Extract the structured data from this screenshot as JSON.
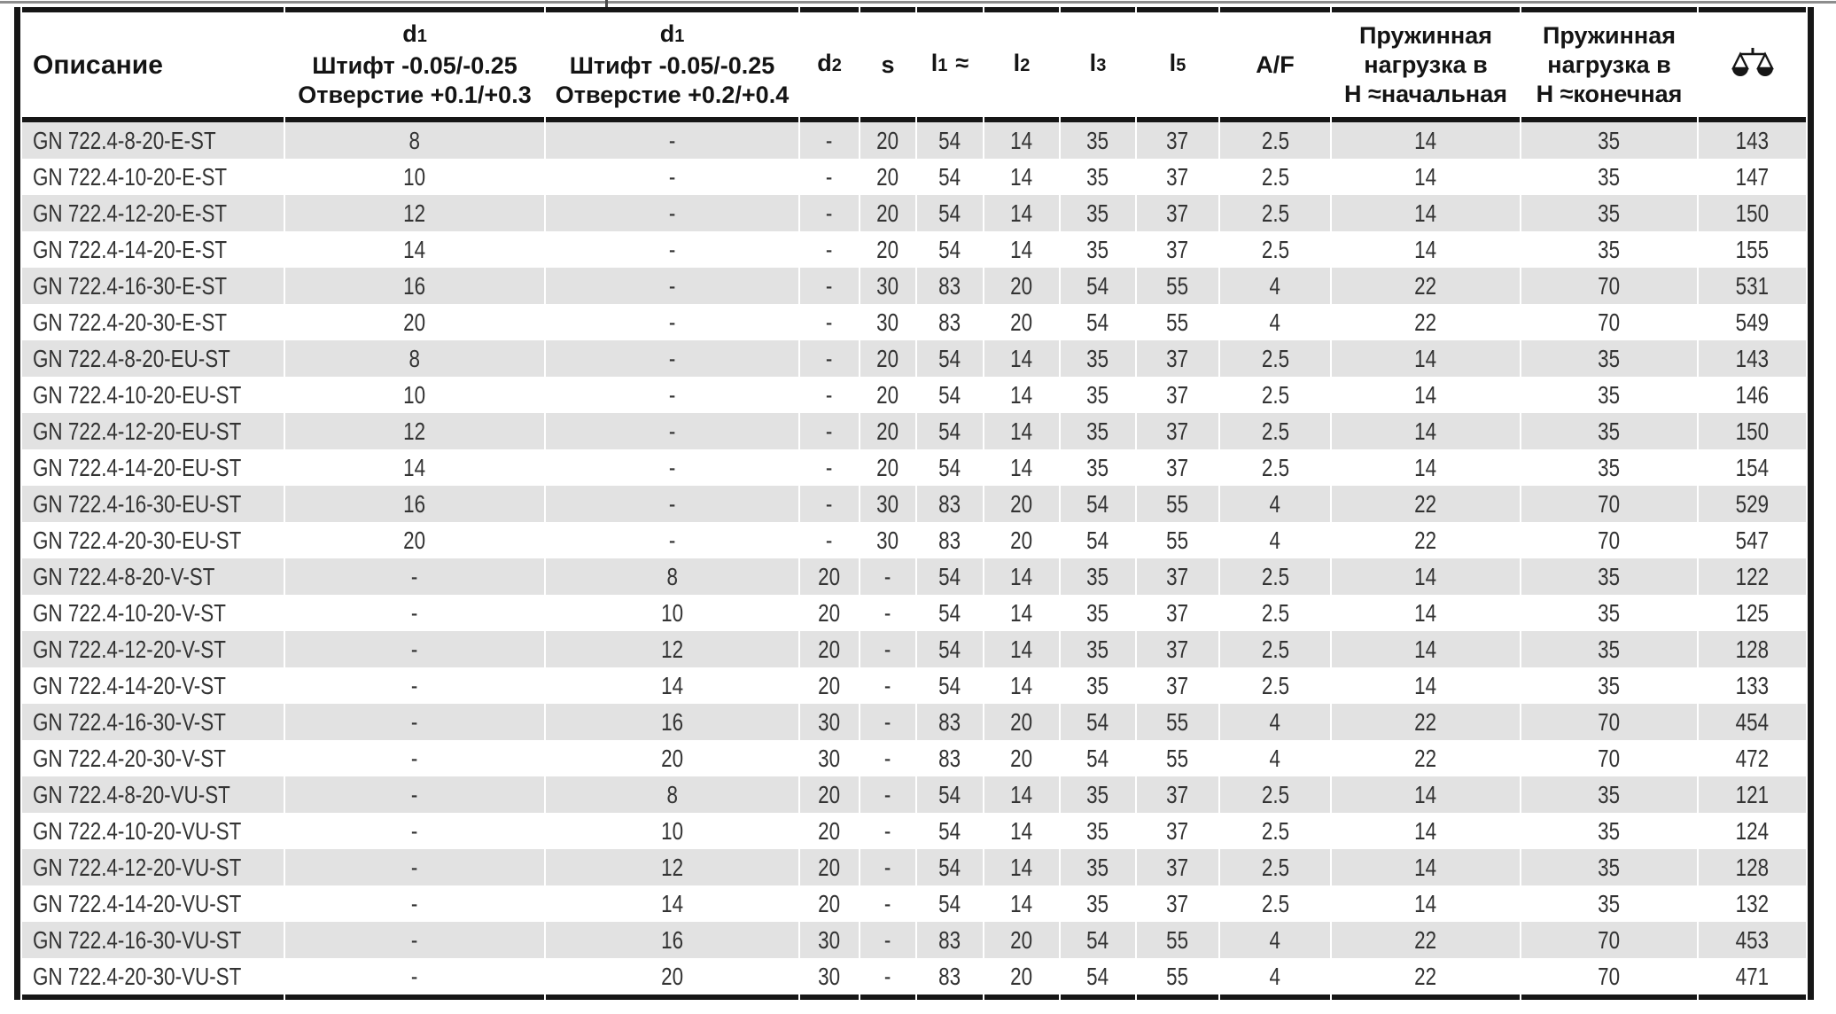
{
  "colors": {
    "stripe": "#e2e2e2",
    "border": "#161616",
    "header_text": "#141414",
    "body_text": "#333333",
    "top_rule": "#8d8d8d"
  },
  "table": {
    "column_ids": [
      "description",
      "d1_hole_a",
      "d1_hole_b",
      "d2",
      "s",
      "l1",
      "l2",
      "l3",
      "l5",
      "af",
      "spring_load_initial",
      "spring_load_final",
      "weight"
    ],
    "header": {
      "description": "Описание",
      "d1_hole_a": {
        "main": "d",
        "sub": "1",
        "line2": "Штифт -0.05/-0.25",
        "line3": "Отверстие +0.1/+0.3"
      },
      "d1_hole_b": {
        "main": "d",
        "sub": "1",
        "line2": "Штифт -0.05/-0.25",
        "line3": "Отверстие +0.2/+0.4"
      },
      "d2": {
        "main": "d",
        "sub": "2"
      },
      "s": "s",
      "l1": {
        "main": "l",
        "sub": "1",
        "approx": "≈"
      },
      "l2": {
        "main": "l",
        "sub": "2"
      },
      "l3": {
        "main": "l",
        "sub": "3"
      },
      "l5": {
        "main": "l",
        "sub": "5"
      },
      "af": "A/F",
      "spring_load_initial_lines": [
        "Пружинная",
        "нагрузка в",
        "H ≈начальная"
      ],
      "spring_load_final_lines": [
        "Пружинная",
        "нагрузка в",
        "H ≈конечная"
      ],
      "weight_icon": "scale-icon"
    },
    "rows": [
      [
        "GN 722.4-8-20-E-ST",
        "8",
        "-",
        "-",
        "20",
        "54",
        "14",
        "35",
        "37",
        "2.5",
        "14",
        "35",
        "143"
      ],
      [
        "GN 722.4-10-20-E-ST",
        "10",
        "-",
        "-",
        "20",
        "54",
        "14",
        "35",
        "37",
        "2.5",
        "14",
        "35",
        "147"
      ],
      [
        "GN 722.4-12-20-E-ST",
        "12",
        "-",
        "-",
        "20",
        "54",
        "14",
        "35",
        "37",
        "2.5",
        "14",
        "35",
        "150"
      ],
      [
        "GN 722.4-14-20-E-ST",
        "14",
        "-",
        "-",
        "20",
        "54",
        "14",
        "35",
        "37",
        "2.5",
        "14",
        "35",
        "155"
      ],
      [
        "GN 722.4-16-30-E-ST",
        "16",
        "-",
        "-",
        "30",
        "83",
        "20",
        "54",
        "55",
        "4",
        "22",
        "70",
        "531"
      ],
      [
        "GN 722.4-20-30-E-ST",
        "20",
        "-",
        "-",
        "30",
        "83",
        "20",
        "54",
        "55",
        "4",
        "22",
        "70",
        "549"
      ],
      [
        "GN 722.4-8-20-EU-ST",
        "8",
        "-",
        "-",
        "20",
        "54",
        "14",
        "35",
        "37",
        "2.5",
        "14",
        "35",
        "143"
      ],
      [
        "GN 722.4-10-20-EU-ST",
        "10",
        "-",
        "-",
        "20",
        "54",
        "14",
        "35",
        "37",
        "2.5",
        "14",
        "35",
        "146"
      ],
      [
        "GN 722.4-12-20-EU-ST",
        "12",
        "-",
        "-",
        "20",
        "54",
        "14",
        "35",
        "37",
        "2.5",
        "14",
        "35",
        "150"
      ],
      [
        "GN 722.4-14-20-EU-ST",
        "14",
        "-",
        "-",
        "20",
        "54",
        "14",
        "35",
        "37",
        "2.5",
        "14",
        "35",
        "154"
      ],
      [
        "GN 722.4-16-30-EU-ST",
        "16",
        "-",
        "-",
        "30",
        "83",
        "20",
        "54",
        "55",
        "4",
        "22",
        "70",
        "529"
      ],
      [
        "GN 722.4-20-30-EU-ST",
        "20",
        "-",
        "-",
        "30",
        "83",
        "20",
        "54",
        "55",
        "4",
        "22",
        "70",
        "547"
      ],
      [
        "GN 722.4-8-20-V-ST",
        "-",
        "8",
        "20",
        "-",
        "54",
        "14",
        "35",
        "37",
        "2.5",
        "14",
        "35",
        "122"
      ],
      [
        "GN 722.4-10-20-V-ST",
        "-",
        "10",
        "20",
        "-",
        "54",
        "14",
        "35",
        "37",
        "2.5",
        "14",
        "35",
        "125"
      ],
      [
        "GN 722.4-12-20-V-ST",
        "-",
        "12",
        "20",
        "-",
        "54",
        "14",
        "35",
        "37",
        "2.5",
        "14",
        "35",
        "128"
      ],
      [
        "GN 722.4-14-20-V-ST",
        "-",
        "14",
        "20",
        "-",
        "54",
        "14",
        "35",
        "37",
        "2.5",
        "14",
        "35",
        "133"
      ],
      [
        "GN 722.4-16-30-V-ST",
        "-",
        "16",
        "30",
        "-",
        "83",
        "20",
        "54",
        "55",
        "4",
        "22",
        "70",
        "454"
      ],
      [
        "GN 722.4-20-30-V-ST",
        "-",
        "20",
        "30",
        "-",
        "83",
        "20",
        "54",
        "55",
        "4",
        "22",
        "70",
        "472"
      ],
      [
        "GN 722.4-8-20-VU-ST",
        "-",
        "8",
        "20",
        "-",
        "54",
        "14",
        "35",
        "37",
        "2.5",
        "14",
        "35",
        "121"
      ],
      [
        "GN 722.4-10-20-VU-ST",
        "-",
        "10",
        "20",
        "-",
        "54",
        "14",
        "35",
        "37",
        "2.5",
        "14",
        "35",
        "124"
      ],
      [
        "GN 722.4-12-20-VU-ST",
        "-",
        "12",
        "20",
        "-",
        "54",
        "14",
        "35",
        "37",
        "2.5",
        "14",
        "35",
        "128"
      ],
      [
        "GN 722.4-14-20-VU-ST",
        "-",
        "14",
        "20",
        "-",
        "54",
        "14",
        "35",
        "37",
        "2.5",
        "14",
        "35",
        "132"
      ],
      [
        "GN 722.4-16-30-VU-ST",
        "-",
        "16",
        "30",
        "-",
        "83",
        "20",
        "54",
        "55",
        "4",
        "22",
        "70",
        "453"
      ],
      [
        "GN 722.4-20-30-VU-ST",
        "-",
        "20",
        "30",
        "-",
        "83",
        "20",
        "54",
        "55",
        "4",
        "22",
        "70",
        "471"
      ]
    ]
  }
}
